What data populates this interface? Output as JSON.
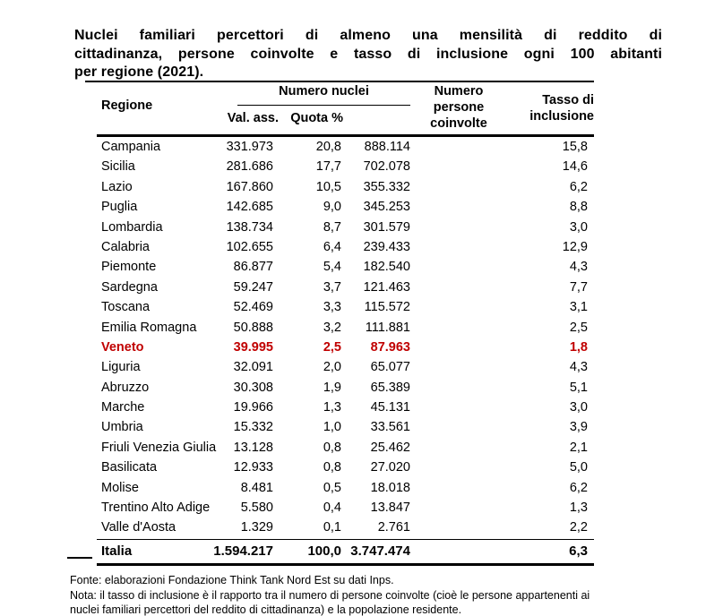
{
  "title_lines": [
    "Nuclei familiari percettori di almeno una mensilità di reddito di",
    "cittadinanza, persone coinvolte e tasso di inclusione ogni 100 abitanti",
    "per regione (2021)."
  ],
  "chart_data": {
    "type": "table",
    "title": "Nuclei familiari percettori di almeno una mensilità di reddito di cittadinanza, persone coinvolte e tasso di inclusione ogni 100 abitanti per regione (2021).",
    "header": {
      "regione_label": "Regione",
      "nuclei_group_label": "Numero nuclei",
      "val_ass_label": "Val. ass.",
      "quota_label": "Quota %",
      "persone_lines": [
        "Numero",
        "persone",
        "coinvolte"
      ],
      "tasso_lines": [
        "Tasso di",
        "inclusione"
      ]
    },
    "rows": [
      {
        "region": "Campania",
        "nuclei_val_ass": "331.973",
        "nuclei_quota_pct": "20,8",
        "persone_coinvolte": "888.114",
        "tasso_inclusione": "15,8"
      },
      {
        "region": "Sicilia",
        "nuclei_val_ass": "281.686",
        "nuclei_quota_pct": "17,7",
        "persone_coinvolte": "702.078",
        "tasso_inclusione": "14,6"
      },
      {
        "region": "Lazio",
        "nuclei_val_ass": "167.860",
        "nuclei_quota_pct": "10,5",
        "persone_coinvolte": "355.332",
        "tasso_inclusione": "6,2"
      },
      {
        "region": "Puglia",
        "nuclei_val_ass": "142.685",
        "nuclei_quota_pct": "9,0",
        "persone_coinvolte": "345.253",
        "tasso_inclusione": "8,8"
      },
      {
        "region": "Lombardia",
        "nuclei_val_ass": "138.734",
        "nuclei_quota_pct": "8,7",
        "persone_coinvolte": "301.579",
        "tasso_inclusione": "3,0"
      },
      {
        "region": "Calabria",
        "nuclei_val_ass": "102.655",
        "nuclei_quota_pct": "6,4",
        "persone_coinvolte": "239.433",
        "tasso_inclusione": "12,9"
      },
      {
        "region": "Piemonte",
        "nuclei_val_ass": "86.877",
        "nuclei_quota_pct": "5,4",
        "persone_coinvolte": "182.540",
        "tasso_inclusione": "4,3"
      },
      {
        "region": "Sardegna",
        "nuclei_val_ass": "59.247",
        "nuclei_quota_pct": "3,7",
        "persone_coinvolte": "121.463",
        "tasso_inclusione": "7,7"
      },
      {
        "region": "Toscana",
        "nuclei_val_ass": "52.469",
        "nuclei_quota_pct": "3,3",
        "persone_coinvolte": "115.572",
        "tasso_inclusione": "3,1"
      },
      {
        "region": "Emilia Romagna",
        "nuclei_val_ass": "50.888",
        "nuclei_quota_pct": "3,2",
        "persone_coinvolte": "111.881",
        "tasso_inclusione": "2,5"
      },
      {
        "region": "Veneto",
        "nuclei_val_ass": "39.995",
        "nuclei_quota_pct": "2,5",
        "persone_coinvolte": "87.963",
        "tasso_inclusione": "1,8"
      },
      {
        "region": "Liguria",
        "nuclei_val_ass": "32.091",
        "nuclei_quota_pct": "2,0",
        "persone_coinvolte": "65.077",
        "tasso_inclusione": "4,3"
      },
      {
        "region": "Abruzzo",
        "nuclei_val_ass": "30.308",
        "nuclei_quota_pct": "1,9",
        "persone_coinvolte": "65.389",
        "tasso_inclusione": "5,1"
      },
      {
        "region": "Marche",
        "nuclei_val_ass": "19.966",
        "nuclei_quota_pct": "1,3",
        "persone_coinvolte": "45.131",
        "tasso_inclusione": "3,0"
      },
      {
        "region": "Umbria",
        "nuclei_val_ass": "15.332",
        "nuclei_quota_pct": "1,0",
        "persone_coinvolte": "33.561",
        "tasso_inclusione": "3,9"
      },
      {
        "region": "Friuli Venezia Giulia",
        "nuclei_val_ass": "13.128",
        "nuclei_quota_pct": "0,8",
        "persone_coinvolte": "25.462",
        "tasso_inclusione": "2,1"
      },
      {
        "region": "Basilicata",
        "nuclei_val_ass": "12.933",
        "nuclei_quota_pct": "0,8",
        "persone_coinvolte": "27.020",
        "tasso_inclusione": "5,0"
      },
      {
        "region": "Molise",
        "nuclei_val_ass": "8.481",
        "nuclei_quota_pct": "0,5",
        "persone_coinvolte": "18.018",
        "tasso_inclusione": "6,2"
      },
      {
        "region": "Trentino Alto Adige",
        "nuclei_val_ass": "5.580",
        "nuclei_quota_pct": "0,4",
        "persone_coinvolte": "13.847",
        "tasso_inclusione": "1,3"
      },
      {
        "region": "Valle d'Aosta",
        "nuclei_val_ass": "1.329",
        "nuclei_quota_pct": "0,1",
        "persone_coinvolte": "2.761",
        "tasso_inclusione": "2,2"
      }
    ],
    "total": {
      "region": "Italia",
      "nuclei_val_ass": "1.594.217",
      "nuclei_quota_pct": "100,0",
      "persone_coinvolte": "3.747.474",
      "tasso_inclusione": "6,3"
    },
    "highlighted_row": "Veneto",
    "source": "Fonte: elaborazioni Fondazione Think Tank Nord Est su dati Inps.",
    "note": "Nota: il tasso di inclusione è il rapporto tra il numero di persone coinvolte (cioè le persone appartenenti ai nuclei familiari percettori del reddito di cittadinanza) e la popolazione residente."
  },
  "footer_lines": [
    "Fonte: elaborazioni Fondazione Think Tank Nord Est su dati Inps.",
    "Nota: il tasso di inclusione è il rapporto tra il numero di persone coinvolte (cioè le persone appartenenti ai",
    "nuclei familiari percettori del reddito di cittadinanza) e la popolazione residente."
  ],
  "colors": {
    "highlight": "#C00000",
    "text": "#000000",
    "rule": "#000000",
    "background": "#FFFFFF"
  }
}
